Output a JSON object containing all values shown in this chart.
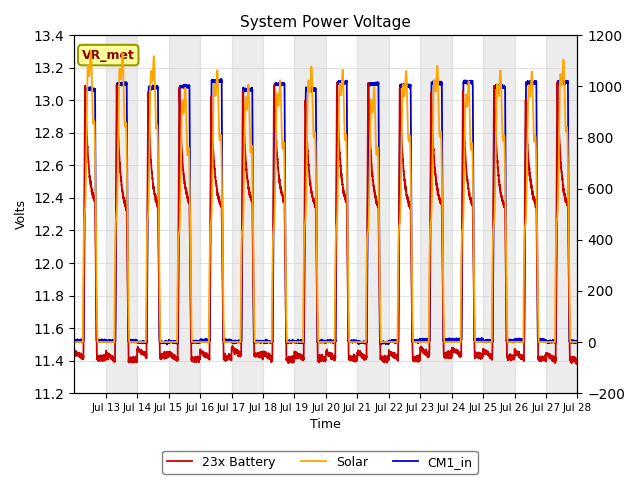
{
  "title": "System Power Voltage",
  "xlabel": "Time",
  "ylabel_left": "Volts",
  "ylim_left": [
    11.2,
    13.4
  ],
  "ylim_right": [
    -200,
    1200
  ],
  "yticks_left": [
    11.2,
    11.4,
    11.6,
    11.8,
    12.0,
    12.2,
    12.4,
    12.6,
    12.8,
    13.0,
    13.2,
    13.4
  ],
  "yticks_right": [
    -200,
    0,
    200,
    400,
    600,
    800,
    1000,
    1200
  ],
  "xtick_labels": [
    "Jul 13",
    "Jul 14",
    "Jul 15",
    "Jul 16",
    "Jul 17",
    "Jul 18",
    "Jul 19",
    "Jul 20",
    "Jul 21",
    "Jul 22",
    "Jul 23",
    "Jul 24",
    "Jul 25",
    "Jul 26",
    "Jul 27",
    "Jul 28"
  ],
  "battery_color": "#cc0000",
  "solar_color": "#ffa500",
  "cm1_color": "#0000cc",
  "legend_labels": [
    "23x Battery",
    "Solar",
    "CM1_in"
  ],
  "annotation_text": "VR_met",
  "annotation_bg": "#ffff99",
  "annotation_border": "#999900",
  "gray_band_alpha": 0.15,
  "line_width": 1.3,
  "total_days": 16
}
